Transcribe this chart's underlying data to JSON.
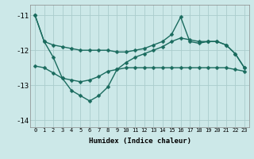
{
  "xlabel": "Humidex (Indice chaleur)",
  "bg_color": "#cce8e8",
  "grid_color": "#aacccc",
  "line_color": "#1a6b5e",
  "x": [
    0,
    1,
    2,
    3,
    4,
    5,
    6,
    7,
    8,
    9,
    10,
    11,
    12,
    13,
    14,
    15,
    16,
    17,
    18,
    19,
    20,
    21,
    22,
    23
  ],
  "line1": [
    -11.0,
    -11.75,
    -11.85,
    -11.9,
    -11.95,
    -12.0,
    -12.0,
    -12.0,
    -12.0,
    -12.05,
    -12.05,
    -12.0,
    -11.95,
    -11.85,
    -11.75,
    -11.55,
    -11.05,
    -11.75,
    -11.8,
    -11.75,
    -11.75,
    -11.85,
    -12.1,
    -12.5
  ],
  "line2": [
    -11.0,
    -11.75,
    -12.2,
    -12.8,
    -13.15,
    -13.3,
    -13.45,
    -13.3,
    -13.05,
    -12.55,
    -12.35,
    -12.2,
    -12.1,
    -12.0,
    -11.9,
    -11.75,
    -11.65,
    -11.7,
    -11.75,
    -11.75,
    -11.75,
    -11.85,
    -12.1,
    -12.5
  ],
  "line3": [
    -12.45,
    -12.5,
    -12.65,
    -12.8,
    -12.85,
    -12.9,
    -12.85,
    -12.75,
    -12.6,
    -12.55,
    -12.5,
    -12.5,
    -12.5,
    -12.5,
    -12.5,
    -12.5,
    -12.5,
    -12.5,
    -12.5,
    -12.5,
    -12.5,
    -12.5,
    -12.55,
    -12.6
  ],
  "ylim": [
    -14.2,
    -10.7
  ],
  "yticks": [
    -14,
    -13,
    -12,
    -11
  ],
  "markersize": 2.5,
  "linewidth": 1.0
}
